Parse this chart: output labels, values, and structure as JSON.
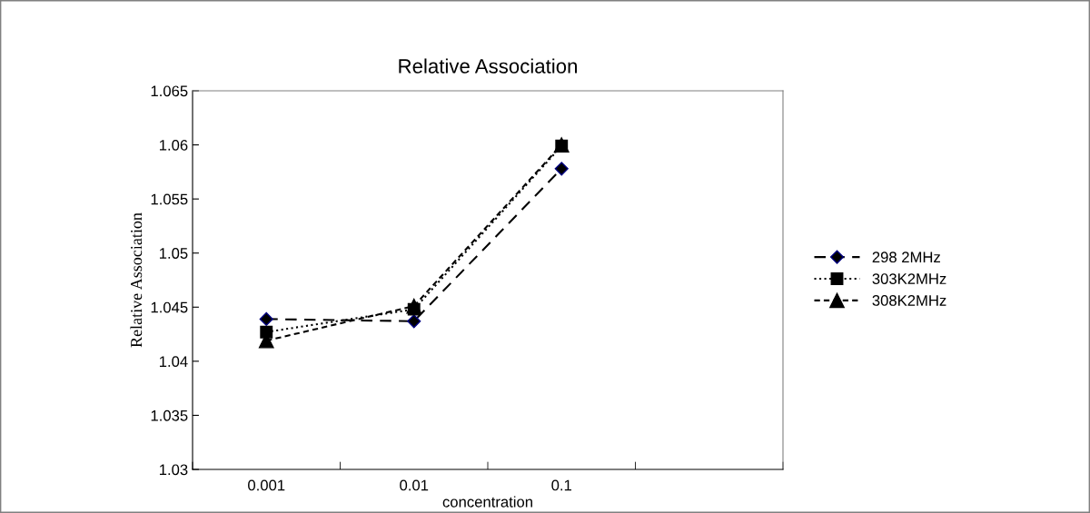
{
  "chart_data": {
    "type": "line",
    "title": "Relative Association",
    "xlabel": "concentration",
    "ylabel": "Relative Association",
    "categories": [
      "0.001",
      "0.01",
      "0.1",
      null
    ],
    "series": [
      {
        "name": "298 2MHz",
        "color": "#000000",
        "marker": "diamond",
        "line_style": "dashed",
        "values": [
          1.0439,
          1.0437,
          1.0578,
          null
        ]
      },
      {
        "name": "303K2MHz",
        "color": "#000000",
        "marker": "square",
        "line_style": "dotted",
        "values": [
          1.0427,
          1.0448,
          1.0599,
          null
        ]
      },
      {
        "name": "308K2MHz",
        "color": "#000000",
        "marker": "triangle",
        "line_style": "dashed",
        "values": [
          1.0419,
          1.0451,
          1.06,
          null
        ]
      }
    ],
    "ylim": [
      1.03,
      1.065
    ],
    "yticks": [
      1.03,
      1.035,
      1.04,
      1.045,
      1.05,
      1.055,
      1.06,
      1.065
    ],
    "grid": false,
    "legend": "right"
  }
}
